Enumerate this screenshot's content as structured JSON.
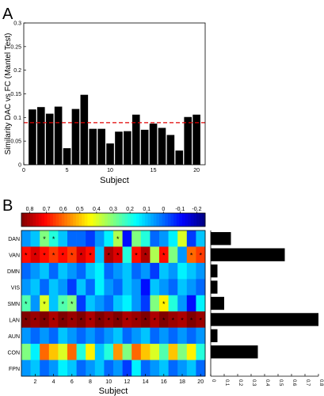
{
  "panels": {
    "a": {
      "label": "A"
    },
    "b": {
      "label": "B"
    }
  },
  "chart_data": [
    {
      "type": "bar",
      "panel": "A",
      "ylabel": "Similarity DAC vs FC (Mantel Test)",
      "xlabel": "Subject",
      "x": [
        1,
        2,
        3,
        4,
        5,
        6,
        7,
        8,
        9,
        10,
        11,
        12,
        13,
        14,
        15,
        16,
        17,
        18,
        19,
        20
      ],
      "values": [
        0.117,
        0.122,
        0.108,
        0.123,
        0.035,
        0.118,
        0.148,
        0.076,
        0.076,
        0.045,
        0.07,
        0.071,
        0.106,
        0.074,
        0.087,
        0.078,
        0.063,
        0.03,
        0.101,
        0.106
      ],
      "ylim": [
        0,
        0.3
      ],
      "xlim": [
        0,
        21
      ],
      "xticks": [
        "0",
        "5",
        "10",
        "15",
        "20"
      ],
      "yticks": [
        "0",
        "0.05",
        "0.1",
        "0.15",
        "0.2",
        "0.25",
        "0.3"
      ],
      "threshold": {
        "value": 0.089,
        "style": "red-dashed"
      },
      "bar_color": "#000000",
      "grid": false
    },
    {
      "type": "heatmap",
      "panel": "B",
      "xlabel": "Subject",
      "rows": [
        "DAN",
        "VAN",
        "DMN",
        "VIS",
        "SMN",
        "LAN",
        "AUN",
        "CON",
        "FPN"
      ],
      "columns": [
        1,
        2,
        3,
        4,
        5,
        6,
        7,
        8,
        9,
        10,
        11,
        12,
        13,
        14,
        15,
        16,
        17,
        18,
        19,
        20
      ],
      "xticks": [
        "2",
        "4",
        "6",
        "8",
        "10",
        "12",
        "14",
        "16",
        "18",
        "20"
      ],
      "colorbar": {
        "range": [
          -0.25,
          0.85
        ],
        "reversed": true,
        "ticks": [
          "0.8",
          "0.7",
          "0.6",
          "0.5",
          "0.4",
          "0.3",
          "0.2",
          "0.1",
          "0",
          "-0.1",
          "-0.2"
        ],
        "tick_values": [
          0.8,
          0.7,
          0.6,
          0.5,
          0.4,
          0.3,
          0.2,
          0.1,
          0,
          -0.1,
          -0.2
        ]
      },
      "values": [
        [
          0.05,
          0.1,
          0.3,
          0.2,
          0.1,
          0.0,
          0.0,
          -0.05,
          0.05,
          0.15,
          0.35,
          -0.1,
          0.3,
          0.2,
          0.0,
          0.05,
          0.15,
          0.4,
          -0.05,
          0.1
        ],
        [
          0.7,
          0.75,
          0.7,
          0.65,
          0.7,
          0.65,
          0.75,
          0.7,
          0.1,
          0.8,
          0.75,
          0.2,
          0.7,
          0.8,
          0.35,
          0.7,
          0.3,
          0.05,
          0.6,
          0.65
        ],
        [
          0.0,
          0.05,
          0.1,
          0.0,
          0.1,
          0.05,
          0.0,
          0.1,
          0.15,
          0.0,
          0.05,
          0.1,
          0.0,
          0.05,
          -0.05,
          0.1,
          0.05,
          0.15,
          0.1,
          0.05
        ],
        [
          0.05,
          0.1,
          0.0,
          0.1,
          0.05,
          -0.05,
          0.1,
          0.0,
          0.15,
          0.05,
          0.0,
          0.1,
          0.05,
          -0.1,
          0.1,
          0.05,
          0.0,
          0.1,
          0.05,
          0.0
        ],
        [
          0.25,
          0.05,
          0.4,
          0.1,
          0.25,
          0.3,
          -0.05,
          0.1,
          0.05,
          0.0,
          0.1,
          0.15,
          0.05,
          -0.05,
          0.3,
          0.45,
          0.2,
          0.05,
          -0.1,
          0.15
        ],
        [
          0.85,
          0.82,
          0.85,
          0.8,
          0.85,
          0.82,
          0.85,
          0.8,
          0.85,
          0.82,
          0.85,
          0.8,
          0.82,
          0.85,
          0.8,
          0.85,
          0.82,
          0.8,
          0.85,
          0.82
        ],
        [
          0.05,
          0.0,
          0.05,
          0.0,
          0.1,
          0.05,
          0.0,
          0.05,
          0.0,
          0.05,
          0.1,
          0.0,
          0.05,
          0.1,
          0.0,
          0.05,
          0.0,
          0.05,
          0.0,
          0.05
        ],
        [
          0.3,
          0.15,
          0.6,
          0.5,
          0.4,
          0.6,
          0.2,
          0.45,
          0.1,
          0.2,
          0.55,
          0.3,
          0.6,
          0.5,
          0.4,
          0.25,
          0.5,
          0.3,
          0.45,
          0.2
        ],
        [
          0.05,
          0.1,
          0.0,
          0.05,
          0.15,
          0.1,
          0.0,
          0.05,
          0.1,
          0.0,
          0.05,
          -0.05,
          0.15,
          0.0,
          0.05,
          0.1,
          0.0,
          0.05,
          0.1,
          0.0
        ]
      ],
      "significant": [
        [
          3,
          4,
          11
        ],
        [
          1,
          2,
          3,
          4,
          5,
          6,
          7,
          8,
          10,
          11,
          13,
          14,
          16,
          19,
          20
        ],
        [],
        [],
        [
          1,
          3,
          5,
          6,
          16
        ],
        [
          1,
          2,
          3,
          4,
          5,
          6,
          7,
          8,
          9,
          10,
          11,
          12,
          13,
          14,
          15,
          16,
          17,
          18,
          19,
          20
        ],
        [],
        [],
        []
      ],
      "significance_marker": "*"
    },
    {
      "type": "bar",
      "orientation": "horizontal",
      "panel": "B-right",
      "categories": [
        "DAN",
        "VAN",
        "DMN",
        "VIS",
        "SMN",
        "LAN",
        "AUN",
        "CON",
        "FPN"
      ],
      "values": [
        0.15,
        0.55,
        0.05,
        0.05,
        0.1,
        0.8,
        0.05,
        0.35,
        0.0
      ],
      "xlim": [
        0,
        0.8
      ],
      "xticks": [
        "0",
        "0.1",
        "0.2",
        "0.3",
        "0.4",
        "0.5",
        "0.6",
        "0.7",
        "0.8"
      ],
      "bar_color": "#000000"
    }
  ]
}
